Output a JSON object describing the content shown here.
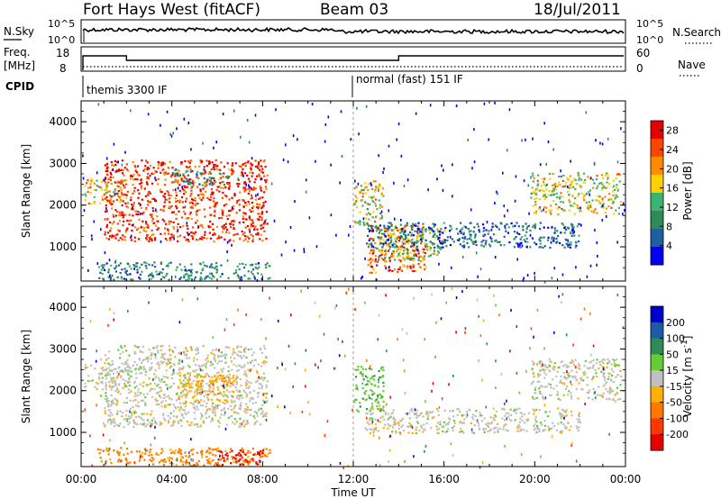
{
  "header": {
    "station": "Fort Hays West (fitACF)",
    "beam": "Beam 03",
    "date": "18/Jul/2011"
  },
  "noise_panel": {
    "left_label": "N.Sky",
    "right_label": "N.Search",
    "left_ticks": [
      "10^5",
      "10^0"
    ],
    "right_ticks": [
      "10^5",
      "10^0"
    ]
  },
  "freq_panel": {
    "left_label_1": "Freq.",
    "left_label_2": "[MHz]",
    "left_ticks": [
      "18",
      "8"
    ],
    "right_label": "Nave",
    "right_ticks": [
      "60",
      "0"
    ]
  },
  "cpid_panel": {
    "label": "CPID",
    "modes": [
      {
        "name": "themis 3300 IF",
        "start_hour": 0
      },
      {
        "name": "normal (fast) 151 IF",
        "start_hour": 12
      }
    ]
  },
  "colors": {
    "power_scale": [
      "#0000ee",
      "#1f5fa0",
      "#2e8b57",
      "#3cb371",
      "#ffd000",
      "#ff8c00",
      "#ff4500",
      "#e60000"
    ],
    "velocity_scale": [
      "#0000cc",
      "#1e5aa8",
      "#2e8b57",
      "#66cc33",
      "#c0c0c0",
      "#ffb000",
      "#ff7800",
      "#ff3800",
      "#e60000"
    ]
  },
  "chart_data": [
    {
      "type": "heatmap",
      "title": "Power",
      "xlabel": "",
      "ylabel": "Slant Range [km]",
      "xlim": [
        0,
        24
      ],
      "ylim": [
        180,
        4500
      ],
      "x_ticks": [
        "00:00",
        "04:00",
        "08:00",
        "12:00",
        "16:00",
        "20:00",
        "00:00"
      ],
      "y_ticks": [
        1000,
        2000,
        3000,
        4000
      ],
      "colorbar": {
        "label": "Power [dB]",
        "ticks": [
          "4",
          "8",
          "12",
          "16",
          "20",
          "24",
          "28"
        ],
        "range": [
          0,
          30
        ]
      },
      "echo_regions": [
        {
          "name": "A",
          "x": [
            0.1,
            2.1
          ],
          "y": [
            2050,
            2650
          ],
          "value": 19
        },
        {
          "name": "B",
          "x": [
            1.0,
            8.2
          ],
          "y": [
            1150,
            3100
          ],
          "value": 26
        },
        {
          "name": "C",
          "x": [
            4.0,
            6.5
          ],
          "y": [
            2500,
            2900
          ],
          "value": 10
        },
        {
          "name": "D",
          "x": [
            0.7,
            8.3
          ],
          "y": [
            220,
            650
          ],
          "value": 9
        },
        {
          "name": "E",
          "x": [
            12.0,
            13.3
          ],
          "y": [
            1500,
            2600
          ],
          "value": 17
        },
        {
          "name": "F",
          "x": [
            12.6,
            15.2
          ],
          "y": [
            400,
            1550
          ],
          "value": 23
        },
        {
          "name": "G",
          "x": [
            13.0,
            16.0
          ],
          "y": [
            700,
            1450
          ],
          "value": 14
        },
        {
          "name": "H",
          "x": [
            12.5,
            22.0
          ],
          "y": [
            1000,
            1600
          ],
          "value": 7
        },
        {
          "name": "I",
          "x": [
            19.8,
            23.8
          ],
          "y": [
            1800,
            2800
          ],
          "value": 17
        }
      ]
    },
    {
      "type": "heatmap",
      "title": "Velocity",
      "xlabel": "Time UT",
      "ylabel": "Slant Range [km]",
      "xlim": [
        0,
        24
      ],
      "ylim": [
        180,
        4500
      ],
      "x_ticks": [
        "00:00",
        "04:00",
        "08:00",
        "12:00",
        "16:00",
        "20:00",
        "00:00"
      ],
      "y_ticks": [
        1000,
        2000,
        3000,
        4000
      ],
      "colorbar": {
        "label": "Velocity [m s^-1]",
        "ticks": [
          "200",
          "100",
          "50",
          "15",
          "-15",
          "-50",
          "-100",
          "-200"
        ],
        "range": [
          250,
          -250
        ]
      },
      "echo_regions": [
        {
          "name": "A",
          "x": [
            0.1,
            2.1
          ],
          "y": [
            2050,
            2650
          ],
          "value": 0
        },
        {
          "name": "B",
          "x": [
            1.0,
            8.2
          ],
          "y": [
            1150,
            3100
          ],
          "value": 0
        },
        {
          "name": "B2",
          "x": [
            4.2,
            6.8
          ],
          "y": [
            1700,
            2400
          ],
          "value": -40
        },
        {
          "name": "D",
          "x": [
            0.7,
            8.3
          ],
          "y": [
            220,
            650
          ],
          "value": -60
        },
        {
          "name": "D2",
          "x": [
            6.0,
            8.0
          ],
          "y": [
            230,
            600
          ],
          "value": -210
        },
        {
          "name": "E",
          "x": [
            12.0,
            13.3
          ],
          "y": [
            1500,
            2600
          ],
          "value": 40
        },
        {
          "name": "H",
          "x": [
            12.5,
            22.0
          ],
          "y": [
            1000,
            1600
          ],
          "value": 0
        },
        {
          "name": "I",
          "x": [
            19.8,
            23.8
          ],
          "y": [
            1800,
            2800
          ],
          "value": 0
        }
      ]
    }
  ]
}
